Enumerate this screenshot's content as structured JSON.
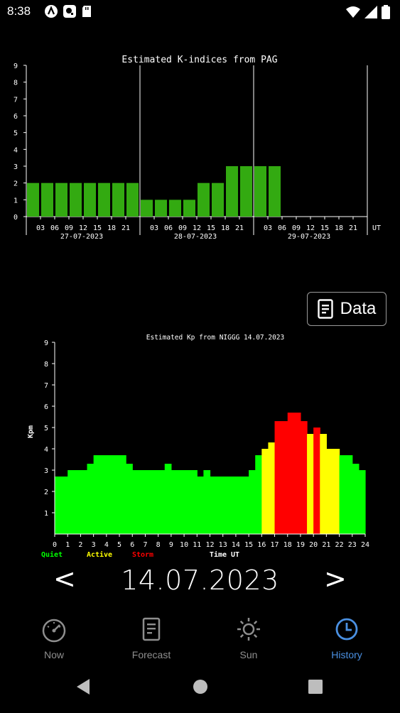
{
  "status": {
    "time": "8:38"
  },
  "chart_data": [
    {
      "type": "bar",
      "title": "Estimated K-indices from PAG",
      "x_unit_label": "UT",
      "y_ticks": [
        "0",
        "1",
        "2",
        "3",
        "4",
        "5",
        "6",
        "7",
        "8",
        "9"
      ],
      "ylim": [
        0,
        9
      ],
      "hour_ticks": [
        "03",
        "06",
        "09",
        "12",
        "15",
        "18",
        "21"
      ],
      "days": [
        "27-07-2023",
        "28-07-2023",
        "29-07-2023"
      ],
      "values": [
        2,
        2,
        2,
        2,
        2,
        2,
        2,
        2,
        1,
        1,
        1,
        1,
        2,
        2,
        3,
        3,
        3,
        3
      ],
      "color": "#33aa11"
    },
    {
      "type": "area",
      "title": "Estimated Kp from NIGGG 14.07.2023",
      "ylabel": "Kpm",
      "xlabel": "Time UT",
      "xlim": [
        0,
        24
      ],
      "ylim": [
        0,
        9
      ],
      "x_ticks": [
        "0",
        "1",
        "2",
        "3",
        "4",
        "5",
        "6",
        "7",
        "8",
        "9",
        "10",
        "11",
        "12",
        "13",
        "14",
        "15",
        "16",
        "17",
        "18",
        "19",
        "20",
        "21",
        "22",
        "23",
        "24"
      ],
      "y_ticks": [
        "1",
        "2",
        "3",
        "4",
        "5",
        "6",
        "7",
        "8",
        "9"
      ],
      "legend": [
        {
          "name": "Quiet",
          "color": "#00ff00"
        },
        {
          "name": "Active",
          "color": "#ffff00"
        },
        {
          "name": "Storm",
          "color": "#ff0000"
        }
      ],
      "thresholds": {
        "active": 4,
        "storm": 5
      },
      "points": [
        [
          0.0,
          2.7
        ],
        [
          0.5,
          2.7
        ],
        [
          1.0,
          3.0
        ],
        [
          1.5,
          3.0
        ],
        [
          2.0,
          3.0
        ],
        [
          2.5,
          3.3
        ],
        [
          3.0,
          3.7
        ],
        [
          3.5,
          3.7
        ],
        [
          4.0,
          3.7
        ],
        [
          4.5,
          3.7
        ],
        [
          5.0,
          3.7
        ],
        [
          5.5,
          3.3
        ],
        [
          6.0,
          3.0
        ],
        [
          6.5,
          3.0
        ],
        [
          7.0,
          3.0
        ],
        [
          7.5,
          3.0
        ],
        [
          8.0,
          3.0
        ],
        [
          8.5,
          3.3
        ],
        [
          9.0,
          3.0
        ],
        [
          9.5,
          3.0
        ],
        [
          10.0,
          3.0
        ],
        [
          10.5,
          3.0
        ],
        [
          11.0,
          2.7
        ],
        [
          11.5,
          3.0
        ],
        [
          12.0,
          2.7
        ],
        [
          12.5,
          2.7
        ],
        [
          13.0,
          2.7
        ],
        [
          13.5,
          2.7
        ],
        [
          14.0,
          2.7
        ],
        [
          14.5,
          2.7
        ],
        [
          15.0,
          3.0
        ],
        [
          15.5,
          3.7
        ],
        [
          16.0,
          4.0
        ],
        [
          16.5,
          4.3
        ],
        [
          17.0,
          5.3
        ],
        [
          17.5,
          5.3
        ],
        [
          18.0,
          5.7
        ],
        [
          18.5,
          5.7
        ],
        [
          19.0,
          5.3
        ],
        [
          19.5,
          4.7
        ],
        [
          20.0,
          5.0
        ],
        [
          20.5,
          4.7
        ],
        [
          21.0,
          4.0
        ],
        [
          21.5,
          4.0
        ],
        [
          22.0,
          3.7
        ],
        [
          22.5,
          3.7
        ],
        [
          23.0,
          3.3
        ],
        [
          23.5,
          3.0
        ]
      ]
    }
  ],
  "data_button": {
    "label": "Data"
  },
  "date_nav": {
    "prev": "<",
    "date": "14.07.2023",
    "next": ">"
  },
  "nav": [
    {
      "label": "Now",
      "icon": "speedometer-icon",
      "active": false
    },
    {
      "label": "Forecast",
      "icon": "document-icon",
      "active": false
    },
    {
      "label": "Sun",
      "icon": "sun-icon",
      "active": false
    },
    {
      "label": "History",
      "icon": "clock-icon",
      "active": true
    }
  ],
  "colors": {
    "accent": "#4a90e2",
    "inactive": "#8e8e8e"
  }
}
